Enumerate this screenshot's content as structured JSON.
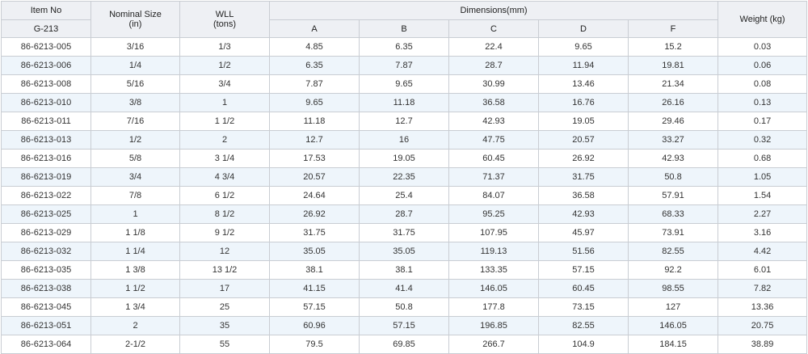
{
  "header": {
    "item_no": "Item No",
    "model": "G-213",
    "nominal_size": "Nominal Size",
    "nominal_size_unit": "(in)",
    "wll": "WLL",
    "wll_unit": "(tons)",
    "dimensions": "Dimensions(mm)",
    "dim_cols": [
      "A",
      "B",
      "C",
      "D",
      "F"
    ],
    "weight": "Weight (kg)"
  },
  "rows": [
    {
      "item": "86-6213-005",
      "size": "3/16",
      "wll": "1/3",
      "a": "4.85",
      "b": "6.35",
      "c": "22.4",
      "d": "9.65",
      "f": "15.2",
      "weight": "0.03"
    },
    {
      "item": "86-6213-006",
      "size": "1/4",
      "wll": "1/2",
      "a": "6.35",
      "b": "7.87",
      "c": "28.7",
      "d": "11.94",
      "f": "19.81",
      "weight": "0.06"
    },
    {
      "item": "86-6213-008",
      "size": "5/16",
      "wll": "3/4",
      "a": "7.87",
      "b": "9.65",
      "c": "30.99",
      "d": "13.46",
      "f": "21.34",
      "weight": "0.08"
    },
    {
      "item": "86-6213-010",
      "size": "3/8",
      "wll": "1",
      "a": "9.65",
      "b": "11.18",
      "c": "36.58",
      "d": "16.76",
      "f": "26.16",
      "weight": "0.13"
    },
    {
      "item": "86-6213-011",
      "size": "7/16",
      "wll": "1 1/2",
      "a": "11.18",
      "b": "12.7",
      "c": "42.93",
      "d": "19.05",
      "f": "29.46",
      "weight": "0.17"
    },
    {
      "item": "86-6213-013",
      "size": "1/2",
      "wll": "2",
      "a": "12.7",
      "b": "16",
      "c": "47.75",
      "d": "20.57",
      "f": "33.27",
      "weight": "0.32"
    },
    {
      "item": "86-6213-016",
      "size": "5/8",
      "wll": "3 1/4",
      "a": "17.53",
      "b": "19.05",
      "c": "60.45",
      "d": "26.92",
      "f": "42.93",
      "weight": "0.68"
    },
    {
      "item": "86-6213-019",
      "size": "3/4",
      "wll": "4 3/4",
      "a": "20.57",
      "b": "22.35",
      "c": "71.37",
      "d": "31.75",
      "f": "50.8",
      "weight": "1.05"
    },
    {
      "item": "86-6213-022",
      "size": "7/8",
      "wll": "6 1/2",
      "a": "24.64",
      "b": "25.4",
      "c": "84.07",
      "d": "36.58",
      "f": "57.91",
      "weight": "1.54"
    },
    {
      "item": "86-6213-025",
      "size": "1",
      "wll": "8 1/2",
      "a": "26.92",
      "b": "28.7",
      "c": "95.25",
      "d": "42.93",
      "f": "68.33",
      "weight": "2.27"
    },
    {
      "item": "86-6213-029",
      "size": "1 1/8",
      "wll": "9 1/2",
      "a": "31.75",
      "b": "31.75",
      "c": "107.95",
      "d": "45.97",
      "f": "73.91",
      "weight": "3.16"
    },
    {
      "item": "86-6213-032",
      "size": "1 1/4",
      "wll": "12",
      "a": "35.05",
      "b": "35.05",
      "c": "119.13",
      "d": "51.56",
      "f": "82.55",
      "weight": "4.42"
    },
    {
      "item": "86-6213-035",
      "size": "1 3/8",
      "wll": "13 1/2",
      "a": "38.1",
      "b": "38.1",
      "c": "133.35",
      "d": "57.15",
      "f": "92.2",
      "weight": "6.01"
    },
    {
      "item": "86-6213-038",
      "size": "1 1/2",
      "wll": "17",
      "a": "41.15",
      "b": "41.4",
      "c": "146.05",
      "d": "60.45",
      "f": "98.55",
      "weight": "7.82"
    },
    {
      "item": "86-6213-045",
      "size": "1 3/4",
      "wll": "25",
      "a": "57.15",
      "b": "50.8",
      "c": "177.8",
      "d": "73.15",
      "f": "127",
      "weight": "13.36"
    },
    {
      "item": "86-6213-051",
      "size": "2",
      "wll": "35",
      "a": "60.96",
      "b": "57.15",
      "c": "196.85",
      "d": "82.55",
      "f": "146.05",
      "weight": "20.75"
    },
    {
      "item": "86-6213-064",
      "size": "2-1/2",
      "wll": "55",
      "a": "79.5",
      "b": "69.85",
      "c": "266.7",
      "d": "104.9",
      "f": "184.15",
      "weight": "38.89"
    }
  ]
}
